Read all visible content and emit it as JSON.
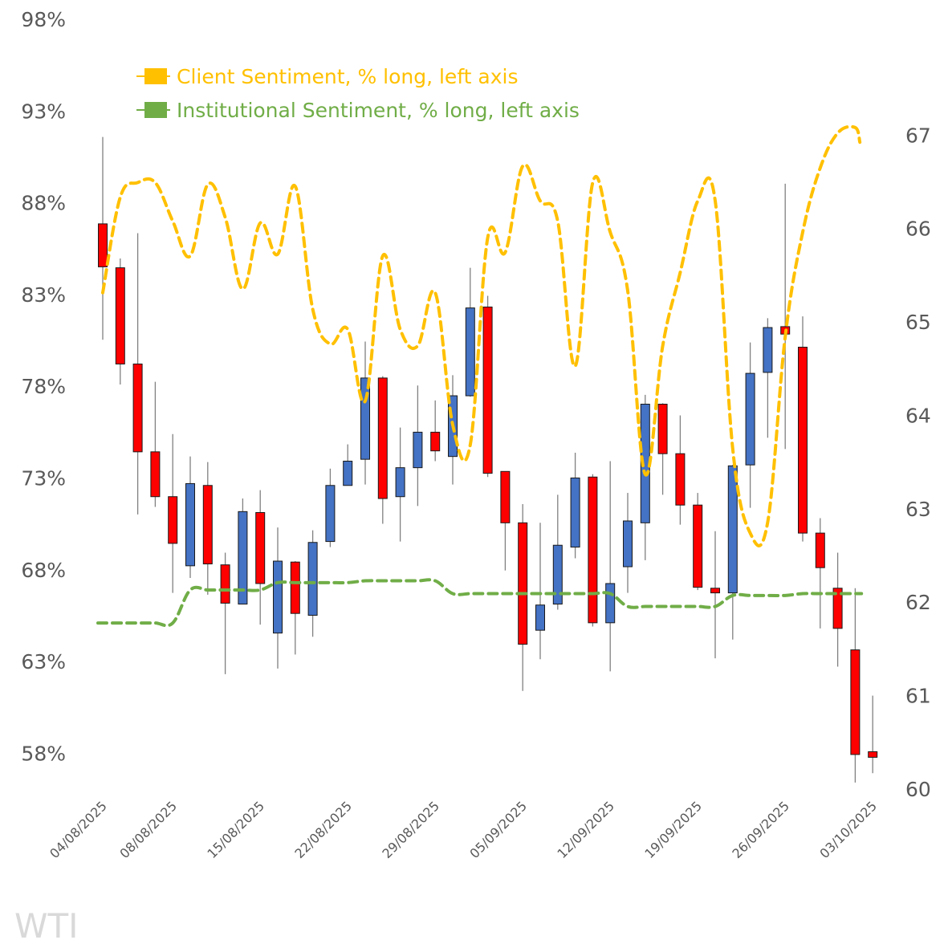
{
  "chart_data": {
    "type": "candlestick+line",
    "title": "",
    "watermark": "WTI",
    "left_axis": {
      "label": "",
      "min": 56.05,
      "max": 98,
      "ticks": [
        58,
        63,
        68,
        73,
        78,
        83,
        88,
        93,
        98
      ],
      "tick_labels": [
        "58%",
        "63%",
        "68%",
        "73%",
        "78%",
        "83%",
        "88%",
        "93%",
        "98%"
      ]
    },
    "right_axis": {
      "label": "",
      "min": 60,
      "max": 68.24,
      "ticks": [
        60,
        61,
        62,
        63,
        64,
        65,
        66,
        67
      ],
      "tick_labels": [
        "60",
        "61",
        "62",
        "63",
        "64",
        "65",
        "66",
        "67"
      ]
    },
    "x_axis": {
      "tick_indices": [
        0,
        4,
        9,
        14,
        19,
        24,
        29,
        34,
        39,
        44
      ],
      "tick_labels": [
        "04/08/2025",
        "08/08/2025",
        "15/08/2025",
        "22/08/2025",
        "29/08/2025",
        "05/09/2025",
        "12/09/2025",
        "19/09/2025",
        "26/09/2025",
        "03/10/2025"
      ]
    },
    "grid": false,
    "legend": {
      "position": "top-left",
      "entries": [
        {
          "label": "Client Sentiment, % long, left axis",
          "color": "#FFC000"
        },
        {
          "label": "Institutional Sentiment, % long, left axis",
          "color": "#70AD47"
        }
      ]
    },
    "colors": {
      "up": "#4472C4",
      "down": "#FF0000",
      "wick": "#808080",
      "client": "#FFC000",
      "institutional": "#70AD47"
    },
    "candles": [
      {
        "o": 66.05,
        "h": 66.98,
        "l": 64.81,
        "c": 65.59
      },
      {
        "o": 65.58,
        "h": 65.68,
        "l": 64.33,
        "c": 64.55
      },
      {
        "o": 64.55,
        "h": 65.95,
        "l": 62.94,
        "c": 63.61
      },
      {
        "o": 63.61,
        "h": 64.36,
        "l": 63.02,
        "c": 63.13
      },
      {
        "o": 63.13,
        "h": 63.8,
        "l": 62.1,
        "c": 62.63
      },
      {
        "o": 62.39,
        "h": 63.56,
        "l": 62.26,
        "c": 63.27
      },
      {
        "o": 63.25,
        "h": 63.5,
        "l": 62.08,
        "c": 62.41
      },
      {
        "o": 62.4,
        "h": 62.53,
        "l": 61.23,
        "c": 61.99
      },
      {
        "o": 61.98,
        "h": 63.11,
        "l": 62.01,
        "c": 62.97
      },
      {
        "o": 62.96,
        "h": 63.2,
        "l": 61.76,
        "c": 62.2
      },
      {
        "o": 61.67,
        "h": 62.8,
        "l": 61.29,
        "c": 62.44
      },
      {
        "o": 62.43,
        "h": 62.44,
        "l": 61.44,
        "c": 61.88
      },
      {
        "o": 61.86,
        "h": 62.77,
        "l": 61.63,
        "c": 62.64
      },
      {
        "o": 62.65,
        "h": 63.43,
        "l": 62.59,
        "c": 63.25
      },
      {
        "o": 63.25,
        "h": 63.69,
        "l": 63.26,
        "c": 63.51
      },
      {
        "o": 63.53,
        "h": 64.79,
        "l": 63.26,
        "c": 64.4
      },
      {
        "o": 64.4,
        "h": 64.42,
        "l": 62.84,
        "c": 63.11
      },
      {
        "o": 63.13,
        "h": 63.87,
        "l": 62.65,
        "c": 63.44
      },
      {
        "o": 63.44,
        "h": 64.32,
        "l": 63.03,
        "c": 63.82
      },
      {
        "o": 63.82,
        "h": 64.16,
        "l": 63.51,
        "c": 63.62
      },
      {
        "o": 63.56,
        "h": 64.43,
        "l": 63.26,
        "c": 64.21
      },
      {
        "o": 64.21,
        "h": 65.58,
        "l": 64.2,
        "c": 65.15
      },
      {
        "o": 65.16,
        "h": 65.28,
        "l": 63.34,
        "c": 63.38
      },
      {
        "o": 63.4,
        "h": 63.39,
        "l": 62.34,
        "c": 62.85
      },
      {
        "o": 62.85,
        "h": 63.05,
        "l": 61.05,
        "c": 61.55
      },
      {
        "o": 61.7,
        "h": 62.85,
        "l": 61.39,
        "c": 61.97
      },
      {
        "o": 61.98,
        "h": 63.15,
        "l": 61.92,
        "c": 62.61
      },
      {
        "o": 62.59,
        "h": 63.6,
        "l": 62.47,
        "c": 63.33
      },
      {
        "o": 63.34,
        "h": 63.37,
        "l": 61.74,
        "c": 61.78
      },
      {
        "o": 61.78,
        "h": 63.51,
        "l": 61.26,
        "c": 62.2
      },
      {
        "o": 62.38,
        "h": 63.17,
        "l": 62.1,
        "c": 62.87
      },
      {
        "o": 62.85,
        "h": 64.22,
        "l": 62.45,
        "c": 64.12
      },
      {
        "o": 64.12,
        "h": 64.13,
        "l": 63.15,
        "c": 63.59
      },
      {
        "o": 63.59,
        "h": 64.0,
        "l": 62.83,
        "c": 63.04
      },
      {
        "o": 63.04,
        "h": 63.17,
        "l": 62.13,
        "c": 62.16
      },
      {
        "o": 62.15,
        "h": 62.76,
        "l": 61.4,
        "c": 62.1
      },
      {
        "o": 62.1,
        "h": 63.47,
        "l": 61.6,
        "c": 63.46
      },
      {
        "o": 63.47,
        "h": 64.78,
        "l": 63.01,
        "c": 64.45
      },
      {
        "o": 64.46,
        "h": 65.04,
        "l": 63.76,
        "c": 64.94
      },
      {
        "o": 64.95,
        "h": 66.48,
        "l": 63.64,
        "c": 64.87
      },
      {
        "o": 64.73,
        "h": 65.06,
        "l": 62.65,
        "c": 62.74
      },
      {
        "o": 62.74,
        "h": 62.9,
        "l": 61.72,
        "c": 62.37
      },
      {
        "o": 62.15,
        "h": 62.53,
        "l": 61.31,
        "c": 61.72
      },
      {
        "o": 61.49,
        "h": 62.15,
        "l": 60.07,
        "c": 60.37
      },
      {
        "o": 60.4,
        "h": 61.0,
        "l": 60.17,
        "c": 60.34
      }
    ],
    "series": [
      {
        "name": "Client Sentiment, % long, left axis",
        "axis": "left",
        "values": [
          83.1,
          88.3,
          89.1,
          89.1,
          87.0,
          85.1,
          89.0,
          87.2,
          83.3,
          86.9,
          85.2,
          88.9,
          82.2,
          80.3,
          81.1,
          77.2,
          85.1,
          81.1,
          80.2,
          83.1,
          75.9,
          74.8,
          86.1,
          85.3,
          90.0,
          88.1,
          87.0,
          79.1,
          89.1,
          86.4,
          83.2,
          73.2,
          80.2,
          84.2,
          88.1,
          88.1,
          74.6,
          70.0,
          70.6,
          80.7,
          86.4,
          89.9,
          91.8,
          92.1,
          91.3
        ]
      },
      {
        "name": "Institutional Sentiment, % long, left axis",
        "axis": "left",
        "values": [
          65.1,
          65.1,
          65.1,
          65.1,
          65.1,
          66.9,
          66.9,
          66.9,
          66.9,
          66.9,
          67.3,
          67.3,
          67.3,
          67.3,
          67.3,
          67.4,
          67.4,
          67.4,
          67.4,
          67.4,
          66.7,
          66.7,
          66.7,
          66.7,
          66.7,
          66.7,
          66.7,
          66.7,
          66.7,
          66.7,
          66.0,
          66.0,
          66.0,
          66.0,
          66.0,
          66.0,
          66.6,
          66.6,
          66.6,
          66.6,
          66.7,
          66.7,
          66.7,
          66.7,
          66.7
        ]
      }
    ]
  }
}
